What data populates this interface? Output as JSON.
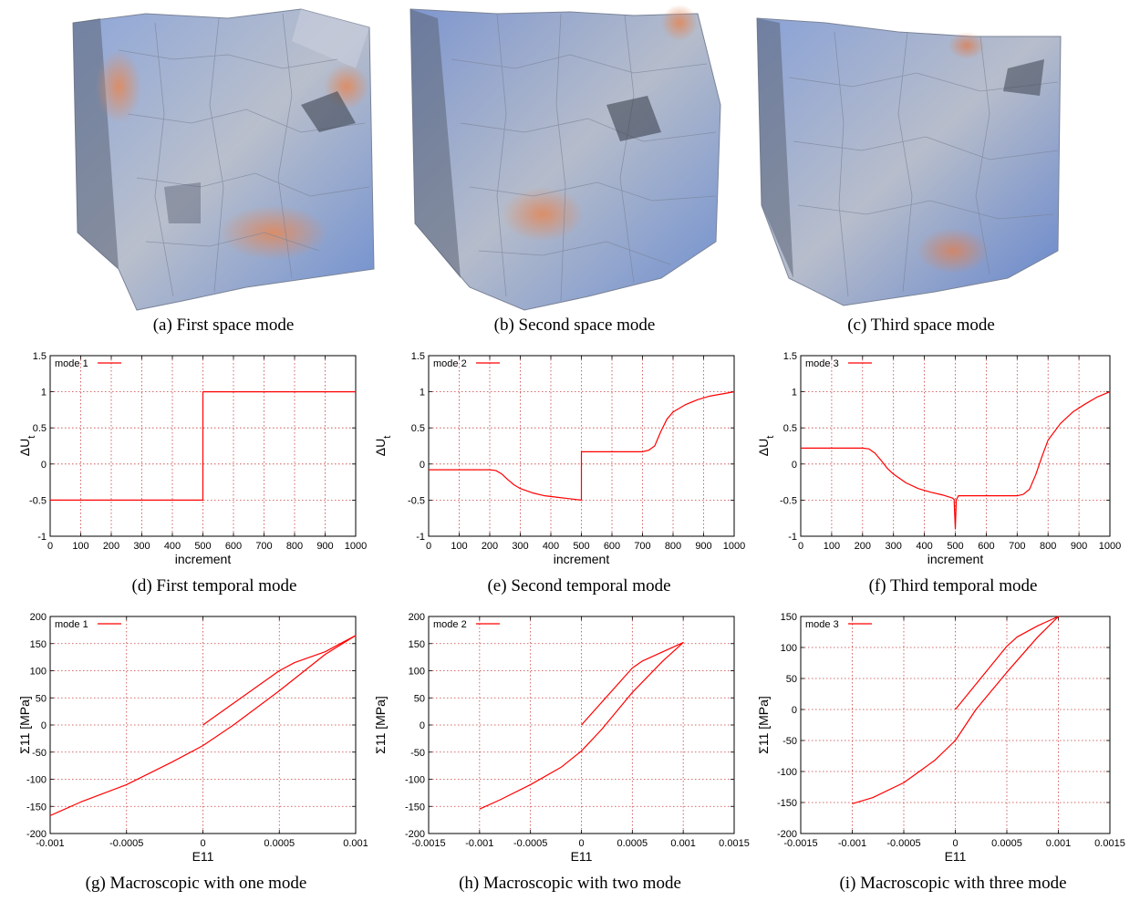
{
  "space_modes": [
    {
      "caption": "(a) First space mode"
    },
    {
      "caption": "(b) Second space mode"
    },
    {
      "caption": "(c) Third space mode"
    }
  ],
  "colors": {
    "series": "#ff0000",
    "grid": "#c83c3c",
    "cube_blue": "#6f8fd0",
    "cube_orange": "#d9825c",
    "cube_gray": "#9aa3b3"
  },
  "chart_data": [
    {
      "id": "d",
      "type": "line",
      "caption": "(d) First temporal mode",
      "xlabel": "increment",
      "ylabel": "ΔU_t",
      "xlim": [
        0,
        1000
      ],
      "ylim": [
        -1,
        1.5
      ],
      "xticks": [
        0,
        100,
        200,
        300,
        400,
        500,
        600,
        700,
        800,
        900,
        1000
      ],
      "yticks": [
        -1,
        -0.5,
        0,
        0.5,
        1,
        1.5
      ],
      "series": [
        {
          "name": "mode 1",
          "x": [
            0,
            499.9,
            500,
            1000
          ],
          "y": [
            -0.5,
            -0.5,
            1,
            1
          ]
        }
      ]
    },
    {
      "id": "e",
      "type": "line",
      "caption": "(e) Second temporal mode",
      "xlabel": "increment",
      "ylabel": "ΔU_t",
      "xlim": [
        0,
        1000
      ],
      "ylim": [
        -1,
        1.5
      ],
      "xticks": [
        0,
        100,
        200,
        300,
        400,
        500,
        600,
        700,
        800,
        900,
        1000
      ],
      "yticks": [
        -1,
        -0.5,
        0,
        0.5,
        1,
        1.5
      ],
      "series": [
        {
          "name": "mode 2",
          "x": [
            0,
            200,
            220,
            240,
            260,
            280,
            300,
            340,
            380,
            420,
            460,
            500,
            500.1,
            520,
            600,
            700,
            720,
            740,
            760,
            780,
            800,
            840,
            880,
            920,
            960,
            1000
          ],
          "y": [
            -0.08,
            -0.08,
            -0.09,
            -0.14,
            -0.22,
            -0.29,
            -0.34,
            -0.4,
            -0.44,
            -0.46,
            -0.48,
            -0.5,
            0.17,
            0.17,
            0.17,
            0.17,
            0.19,
            0.25,
            0.45,
            0.62,
            0.72,
            0.82,
            0.89,
            0.94,
            0.97,
            1.0
          ]
        }
      ]
    },
    {
      "id": "f",
      "type": "line",
      "caption": "(f) Third temporal mode",
      "xlabel": "increment",
      "ylabel": "ΔU_t",
      "xlim": [
        0,
        1000
      ],
      "ylim": [
        -1,
        1.5
      ],
      "xticks": [
        0,
        100,
        200,
        300,
        400,
        500,
        600,
        700,
        800,
        900,
        1000
      ],
      "yticks": [
        -1,
        -0.5,
        0,
        0.5,
        1,
        1.5
      ],
      "series": [
        {
          "name": "mode 3",
          "x": [
            0,
            200,
            220,
            240,
            260,
            280,
            300,
            340,
            380,
            420,
            460,
            490,
            496,
            500,
            503,
            510,
            600,
            700,
            720,
            740,
            760,
            780,
            800,
            840,
            880,
            920,
            960,
            1000
          ],
          "y": [
            0.22,
            0.22,
            0.21,
            0.15,
            0.05,
            -0.06,
            -0.14,
            -0.26,
            -0.34,
            -0.39,
            -0.43,
            -0.47,
            -0.49,
            -0.9,
            -0.5,
            -0.44,
            -0.44,
            -0.44,
            -0.42,
            -0.35,
            -0.15,
            0.1,
            0.33,
            0.56,
            0.72,
            0.83,
            0.93,
            1.0
          ]
        }
      ]
    },
    {
      "id": "g",
      "type": "line",
      "caption": "(g) Macroscopic with one mode",
      "xlabel": "E11",
      "ylabel": "Σ11 [MPa]",
      "xlim": [
        -0.001,
        0.001
      ],
      "ylim": [
        -200,
        200
      ],
      "xticks": [
        -0.001,
        -0.0005,
        0,
        0.0005,
        0.001
      ],
      "yticks": [
        -200,
        -150,
        -100,
        -50,
        0,
        50,
        100,
        150,
        200
      ],
      "series": [
        {
          "name": "mode 1",
          "x": [
            0,
            0.0005,
            0.0006,
            0.0008,
            0.001,
            0.0008,
            0.0005,
            0.0002,
            0,
            -0.0002,
            -0.0005,
            -0.0008,
            -0.001
          ],
          "y": [
            0,
            100,
            115,
            135,
            165,
            130,
            63,
            0,
            -38,
            -68,
            -110,
            -142,
            -167
          ]
        }
      ]
    },
    {
      "id": "h",
      "type": "line",
      "caption": "(h) Macroscopic with two mode",
      "xlabel": "E11",
      "ylabel": "Σ11 [MPa]",
      "xlim": [
        -0.0015,
        0.0015
      ],
      "ylim": [
        -200,
        200
      ],
      "xticks": [
        -0.0015,
        -0.001,
        -0.0005,
        0,
        0.0005,
        0.001,
        0.0015
      ],
      "yticks": [
        -200,
        -150,
        -100,
        -50,
        0,
        50,
        100,
        150,
        200
      ],
      "series": [
        {
          "name": "mode 2",
          "x": [
            0,
            0.0005,
            0.0006,
            0.0008,
            0.001,
            0.0008,
            0.0005,
            0.0002,
            0,
            -0.0002,
            -0.0005,
            -0.0008,
            -0.001
          ],
          "y": [
            0,
            105,
            118,
            135,
            152,
            118,
            60,
            -8,
            -48,
            -78,
            -110,
            -138,
            -155
          ]
        }
      ]
    },
    {
      "id": "i",
      "type": "line",
      "caption": "(i) Macroscopic with three mode",
      "xlabel": "E11",
      "ylabel": "Σ11 [MPa]",
      "xlim": [
        -0.0015,
        0.0015
      ],
      "ylim": [
        -200,
        150
      ],
      "xticks": [
        -0.0015,
        -0.001,
        -0.0005,
        0,
        0.0005,
        0.001,
        0.0015
      ],
      "yticks": [
        -200,
        -150,
        -100,
        -50,
        0,
        50,
        100,
        150
      ],
      "series": [
        {
          "name": "mode 3",
          "x": [
            0,
            0.0005,
            0.0006,
            0.0008,
            0.001,
            0.0008,
            0.0005,
            0.0002,
            0,
            -0.0002,
            -0.0005,
            -0.0008,
            -0.001
          ],
          "y": [
            0,
            102,
            117,
            135,
            150,
            117,
            60,
            0,
            -50,
            -82,
            -118,
            -142,
            -152
          ]
        }
      ]
    }
  ]
}
